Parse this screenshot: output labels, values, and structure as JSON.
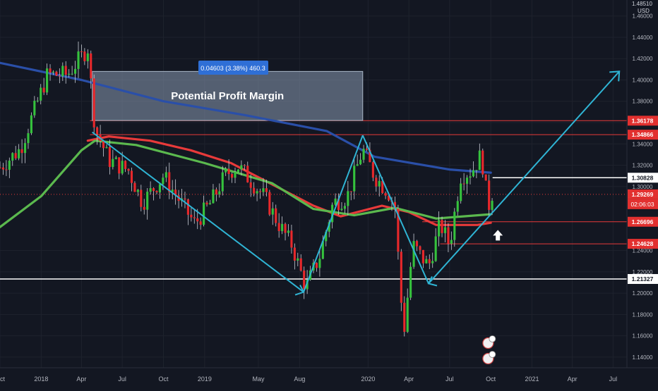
{
  "header": {
    "currency": "USD",
    "top_price": "1.48510"
  },
  "measure_label": "0.04603 (3.38%) 460.3",
  "annotation": "Potential Profit Margin",
  "chart_data": {
    "type": "candlestick",
    "title": "",
    "xlim": [
      "2017-10-01",
      "2021-08-01"
    ],
    "ylim": [
      1.13,
      1.475
    ],
    "y_ticks": [
      "1.46000",
      "1.44000",
      "1.42000",
      "1.40000",
      "1.38000",
      "1.36000",
      "1.34000",
      "1.32000",
      "1.30000",
      "1.24000",
      "1.22000",
      "1.20000",
      "1.18000",
      "1.16000",
      "1.14000"
    ],
    "x_ticks": [
      {
        "label": "Oct",
        "date": "2017-10-01"
      },
      {
        "label": "2018",
        "date": "2018-01-01"
      },
      {
        "label": "Apr",
        "date": "2018-04-01"
      },
      {
        "label": "Jul",
        "date": "2018-07-01"
      },
      {
        "label": "Oct",
        "date": "2018-10-01"
      },
      {
        "label": "2019",
        "date": "2019-01-01"
      },
      {
        "label": "May",
        "date": "2019-05-01"
      },
      {
        "label": "Aug",
        "date": "2019-08-01"
      },
      {
        "label": "2020",
        "date": "2020-01-01"
      },
      {
        "label": "Apr",
        "date": "2020-04-01"
      },
      {
        "label": "Jul",
        "date": "2020-07-01"
      },
      {
        "label": "Oct",
        "date": "2020-10-01"
      },
      {
        "label": "2021",
        "date": "2021-01-01"
      },
      {
        "label": "Apr",
        "date": "2021-04-01"
      },
      {
        "label": "Jul",
        "date": "2021-07-01"
      }
    ],
    "path_points": [
      [
        "2017-10-01",
        1.318
      ],
      [
        "2017-11-15",
        1.335
      ],
      [
        "2018-01-15",
        1.405
      ],
      [
        "2018-03-01",
        1.405
      ],
      [
        "2018-04-15",
        1.43
      ],
      [
        "2018-05-01",
        1.355
      ],
      [
        "2018-06-01",
        1.325
      ],
      [
        "2018-07-15",
        1.315
      ],
      [
        "2018-08-15",
        1.285
      ],
      [
        "2018-10-01",
        1.31
      ],
      [
        "2018-11-01",
        1.29
      ],
      [
        "2018-12-10",
        1.265
      ],
      [
        "2019-01-15",
        1.285
      ],
      [
        "2019-02-15",
        1.31
      ],
      [
        "2019-03-15",
        1.32
      ],
      [
        "2019-04-15",
        1.305
      ],
      [
        "2019-05-15",
        1.29
      ],
      [
        "2019-06-15",
        1.265
      ],
      [
        "2019-07-15",
        1.245
      ],
      [
        "2019-08-15",
        1.205
      ],
      [
        "2019-09-15",
        1.235
      ],
      [
        "2019-10-15",
        1.285
      ],
      [
        "2019-11-15",
        1.29
      ],
      [
        "2019-12-20",
        1.335
      ],
      [
        "2020-01-15",
        1.31
      ],
      [
        "2020-02-15",
        1.295
      ],
      [
        "2020-03-01",
        1.28
      ],
      [
        "2020-03-20",
        1.16
      ],
      [
        "2020-04-10",
        1.245
      ],
      [
        "2020-05-15",
        1.225
      ],
      [
        "2020-06-10",
        1.265
      ],
      [
        "2020-07-01",
        1.245
      ],
      [
        "2020-07-25",
        1.31
      ],
      [
        "2020-08-20",
        1.315
      ],
      [
        "2020-09-10",
        1.33
      ],
      [
        "2020-09-25",
        1.28
      ],
      [
        "2020-10-05",
        1.295
      ]
    ],
    "price_levels": [
      {
        "value": 1.36178,
        "label": "1.36178",
        "color": "#e83a3a"
      },
      {
        "value": 1.34866,
        "label": "1.34866",
        "color": "#e83a3a"
      },
      {
        "value": 1.30828,
        "label": "1.30828",
        "color": "#ffffff"
      },
      {
        "value": 1.29269,
        "label": "1.29269",
        "color": "#e83a3a"
      },
      {
        "value": 1.26696,
        "label": "1.26696",
        "color": "#e83a3a"
      },
      {
        "value": 1.24628,
        "label": "1.24628",
        "color": "#e83a3a"
      },
      {
        "value": 1.21327,
        "label": "1.21327",
        "color": "#ffffff"
      }
    ],
    "countdown": "02:06:03",
    "moving_averages": [
      {
        "color": "#2a4fa8",
        "points": [
          [
            "2017-10-01",
            1.416
          ],
          [
            "2018-04-01",
            1.4
          ],
          [
            "2018-10-01",
            1.38
          ],
          [
            "2019-04-01",
            1.367
          ],
          [
            "2019-10-01",
            1.352
          ],
          [
            "2020-01-15",
            1.328
          ],
          [
            "2020-07-01",
            1.316
          ],
          [
            "2020-10-01",
            1.313
          ]
        ]
      },
      {
        "color": "#e83a3a",
        "points": [
          [
            "2018-04-15",
            1.343
          ],
          [
            "2018-06-01",
            1.347
          ],
          [
            "2018-09-01",
            1.343
          ],
          [
            "2018-12-01",
            1.334
          ],
          [
            "2019-03-01",
            1.322
          ],
          [
            "2019-06-01",
            1.302
          ],
          [
            "2019-09-01",
            1.282
          ],
          [
            "2019-11-01",
            1.272
          ],
          [
            "2020-02-01",
            1.282
          ],
          [
            "2020-04-01",
            1.276
          ],
          [
            "2020-06-01",
            1.264
          ],
          [
            "2020-09-01",
            1.264
          ],
          [
            "2020-10-01",
            1.266
          ]
        ]
      },
      {
        "color": "#5bb94e",
        "points": [
          [
            "2017-10-01",
            1.262
          ],
          [
            "2018-01-01",
            1.291
          ],
          [
            "2018-04-01",
            1.334
          ],
          [
            "2018-05-01",
            1.343
          ],
          [
            "2018-08-01",
            1.339
          ],
          [
            "2019-01-01",
            1.322
          ],
          [
            "2019-06-01",
            1.303
          ],
          [
            "2019-09-01",
            1.279
          ],
          [
            "2019-12-01",
            1.273
          ],
          [
            "2020-03-01",
            1.28
          ],
          [
            "2020-06-01",
            1.27
          ],
          [
            "2020-08-01",
            1.272
          ],
          [
            "2020-10-01",
            1.274
          ]
        ]
      }
    ],
    "trend_lines": [
      [
        [
          "2018-04-25",
          1.351
        ],
        [
          "2019-08-10",
          1.201
        ]
      ],
      [
        [
          "2019-08-10",
          1.201
        ],
        [
          "2019-12-20",
          1.348
        ]
      ],
      [
        [
          "2019-12-20",
          1.348
        ],
        [
          "2020-05-15",
          1.209
        ]
      ],
      [
        [
          "2020-05-15",
          1.209
        ],
        [
          "2021-07-15",
          1.408
        ]
      ]
    ],
    "profit_box": {
      "x0": "2018-04-25",
      "x1": "2019-12-20",
      "y0": 1.362,
      "y1": 1.408
    },
    "arrow_marker": {
      "date": "2020-10-01",
      "price": 1.254
    }
  }
}
